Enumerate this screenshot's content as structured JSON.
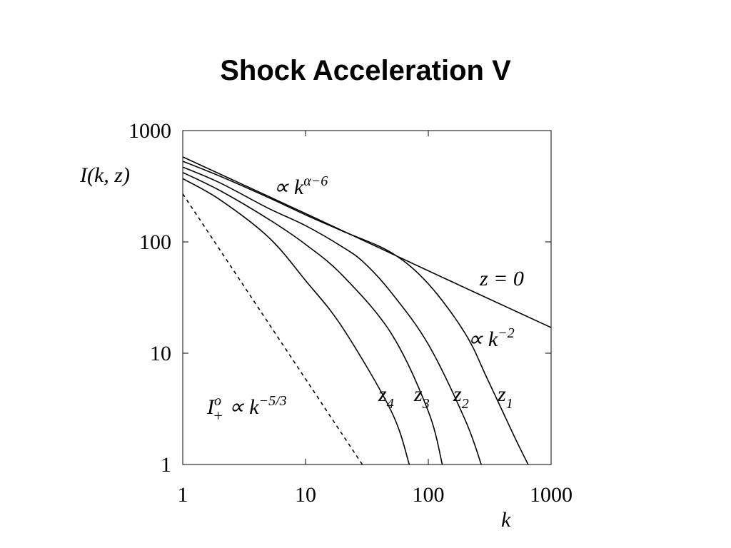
{
  "chart_data": {
    "type": "line",
    "title": "Shock Acceleration V",
    "x_label": "k",
    "y_label": "I(k, z)",
    "x_log": true,
    "y_log": true,
    "xlim": [
      1,
      1000
    ],
    "ylim": [
      1,
      1000
    ],
    "xticks": [
      1,
      10,
      100,
      1000
    ],
    "yticks": [
      1,
      10,
      100,
      1000
    ],
    "series": [
      {
        "label": {
          "text": "z = 0"
        },
        "color": "#000000",
        "x": [
          1,
          10,
          100,
          1000
        ],
        "values": [
          580,
          180,
          55,
          17
        ]
      },
      {
        "label": {
          "text": "z",
          "sub": "1"
        },
        "color": "#000000",
        "x": [
          1,
          2,
          5,
          10,
          20,
          50,
          100,
          200,
          300,
          500,
          650
        ],
        "values": [
          530,
          390,
          250,
          175,
          125,
          80,
          42,
          15,
          6,
          1.8,
          1
        ]
      },
      {
        "label": {
          "text": "z",
          "sub": "2"
        },
        "color": "#000000",
        "x": [
          1,
          2,
          5,
          10,
          20,
          30,
          50,
          100,
          200,
          270
        ],
        "values": [
          470,
          340,
          200,
          140,
          90,
          65,
          35,
          12,
          2.5,
          1
        ]
      },
      {
        "label": {
          "text": "z",
          "sub": "3"
        },
        "color": "#000000",
        "x": [
          1,
          2,
          5,
          10,
          20,
          50,
          100,
          130
        ],
        "values": [
          420,
          290,
          160,
          95,
          50,
          15,
          3,
          1
        ]
      },
      {
        "label": {
          "text": "z",
          "sub": "4"
        },
        "color": "#000000",
        "x": [
          1,
          2,
          5,
          10,
          20,
          50,
          70
        ],
        "values": [
          370,
          240,
          110,
          45,
          17,
          3,
          1
        ]
      },
      {
        "label": {
          "text": "I",
          "sup": "o",
          "sub": "+",
          "rest": " ∝ k",
          "rest_sup": "−5/3"
        },
        "color": "#000000",
        "dashed": true,
        "x": [
          1,
          29
        ],
        "values": [
          270,
          1
        ]
      }
    ],
    "annotations": [
      {
        "text": "∝ k",
        "sup": "α−6"
      },
      {
        "text": "∝ k",
        "sup": "−2"
      }
    ]
  }
}
